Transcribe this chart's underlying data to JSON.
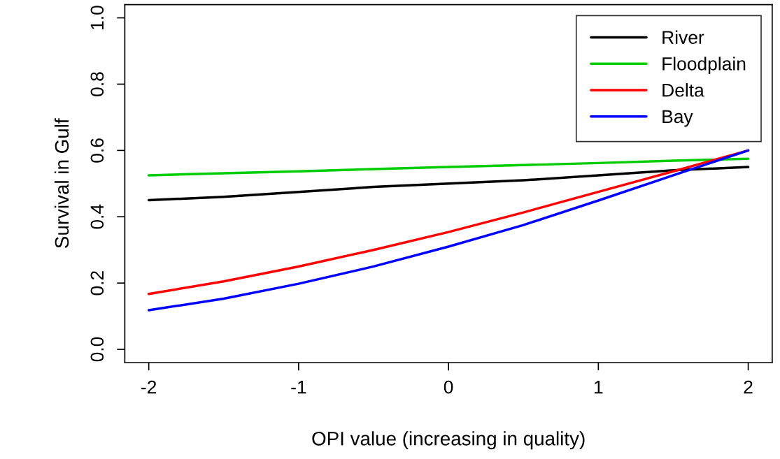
{
  "chart_data": {
    "type": "line",
    "xlabel": "OPI value (increasing in quality)",
    "ylabel": "Survival in Gulf",
    "x": [
      -2,
      -1.5,
      -1,
      -0.5,
      0,
      0.5,
      1,
      1.5,
      2
    ],
    "series": [
      {
        "name": "River",
        "color": "#000000",
        "values": [
          0.45,
          0.46,
          0.475,
          0.49,
          0.5,
          0.51,
          0.525,
          0.54,
          0.55
        ]
      },
      {
        "name": "Floodplain",
        "color": "#00cc00",
        "values": [
          0.525,
          0.531,
          0.537,
          0.544,
          0.55,
          0.556,
          0.562,
          0.569,
          0.575
        ]
      },
      {
        "name": "Delta",
        "color": "#ff0000",
        "values": [
          0.167,
          0.205,
          0.25,
          0.3,
          0.354,
          0.413,
          0.475,
          0.537,
          0.6
        ]
      },
      {
        "name": "Bay",
        "color": "#0000ff",
        "values": [
          0.118,
          0.153,
          0.198,
          0.25,
          0.31,
          0.375,
          0.449,
          0.525,
          0.6
        ]
      }
    ],
    "xlim": [
      -2.16,
      2.16
    ],
    "ylim": [
      -0.04,
      1.04
    ],
    "xticks": [
      -2,
      -1,
      0,
      1,
      2
    ],
    "yticks": [
      {
        "value": 0,
        "label": "0.0"
      },
      0.2,
      0.4,
      0.6,
      0.8,
      {
        "value": 1,
        "label": "1.0"
      }
    ],
    "legend": "top right",
    "grid": false,
    "marker": "none",
    "line_style": "solid"
  }
}
